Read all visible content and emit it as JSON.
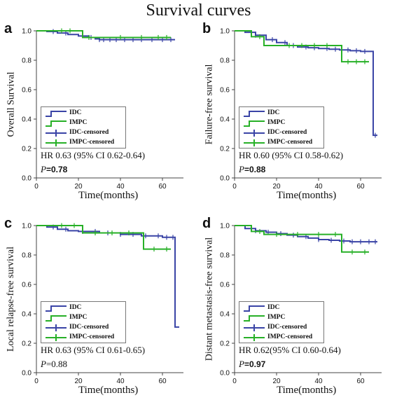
{
  "title": "Survival curves",
  "colors": {
    "IDC": "#3a44a6",
    "IMPC": "#27b027",
    "axis": "#444444"
  },
  "chart_data": [
    {
      "panel_label": "a",
      "type": "line",
      "title": "",
      "ylabel": "Overall Survival",
      "xlabel": "Time(months)",
      "xlim": [
        0,
        70
      ],
      "ylim": [
        0,
        1.0
      ],
      "xticks": [
        "0",
        "20",
        "40",
        "60"
      ],
      "yticks": [
        "0.0",
        "0.2",
        "0.4",
        "0.6",
        "0.8",
        "1.0"
      ],
      "legend": [
        "IDC",
        "IMPC",
        "IDC-censored",
        "IMPC-censored"
      ],
      "hr_text": "HR 0.63 (95% CI 0.62-0.64)",
      "p_label": "P",
      "p_value": "=0.78",
      "series": [
        {
          "name": "IDC",
          "x": [
            0,
            5,
            10,
            15,
            20,
            25,
            28,
            30,
            40,
            50,
            60,
            66
          ],
          "y": [
            1.0,
            0.995,
            0.985,
            0.975,
            0.965,
            0.955,
            0.945,
            0.94,
            0.94,
            0.94,
            0.94,
            0.94
          ],
          "censor_x": [
            8,
            14,
            26,
            30,
            32,
            35,
            38,
            42,
            46,
            50,
            55,
            60,
            64
          ]
        },
        {
          "name": "IMPC",
          "x": [
            0,
            22,
            22,
            64
          ],
          "y": [
            1.0,
            1.0,
            0.955,
            0.955
          ],
          "censor_x": [
            12,
            16,
            25,
            40,
            50,
            58,
            62
          ]
        }
      ]
    },
    {
      "panel_label": "b",
      "type": "line",
      "title": "",
      "ylabel": "Failure-free survival",
      "xlabel": "Time(months)",
      "xlim": [
        0,
        70
      ],
      "ylim": [
        0,
        1.0
      ],
      "xticks": [
        "0",
        "20",
        "40",
        "60"
      ],
      "yticks": [
        "0.0",
        "0.2",
        "0.4",
        "0.6",
        "0.8",
        "1.0"
      ],
      "legend": [
        "IDC",
        "IMPC",
        "IDC-censored",
        "IMPC-censored"
      ],
      "hr_text": "HR 0.60 (95% CI 0.58-0.62)",
      "p_label": "P",
      "p_value": "=0.88",
      "series": [
        {
          "name": "IDC",
          "x": [
            0,
            5,
            10,
            15,
            20,
            25,
            30,
            35,
            40,
            45,
            50,
            55,
            60,
            66,
            66,
            68
          ],
          "y": [
            1.0,
            0.99,
            0.97,
            0.94,
            0.92,
            0.9,
            0.89,
            0.885,
            0.88,
            0.875,
            0.87,
            0.865,
            0.86,
            0.86,
            0.29,
            0.29
          ],
          "censor_x": [
            10,
            18,
            24,
            28,
            34,
            38,
            44,
            48,
            54,
            58,
            62,
            67
          ]
        },
        {
          "name": "IMPC",
          "x": [
            0,
            8,
            8,
            14,
            14,
            22,
            22,
            51,
            51,
            64
          ],
          "y": [
            1.0,
            1.0,
            0.96,
            0.96,
            0.9,
            0.9,
            0.9,
            0.9,
            0.79,
            0.79
          ],
          "censor_x": [
            12,
            26,
            32,
            38,
            44,
            54,
            58,
            62
          ]
        }
      ]
    },
    {
      "panel_label": "c",
      "type": "line",
      "title": "",
      "ylabel": "Local relapse-free survival",
      "xlabel": "Time(months)",
      "xlim": [
        0,
        70
      ],
      "ylim": [
        0,
        1.0
      ],
      "xticks": [
        "0",
        "20",
        "40",
        "60"
      ],
      "yticks": [
        "0.0",
        "0.2",
        "0.4",
        "0.6",
        "0.8",
        "1.0"
      ],
      "legend": [
        "IDC",
        "IMPC",
        "IDC-censored",
        "IMPC-censored"
      ],
      "hr_text": "HR 0.63 (95% CI 0.61-0.65)",
      "p_label": "P",
      "p_value": "=0.88",
      "series": [
        {
          "name": "IDC",
          "x": [
            0,
            5,
            10,
            15,
            20,
            30,
            40,
            50,
            60,
            66,
            66,
            68
          ],
          "y": [
            1.0,
            0.99,
            0.975,
            0.965,
            0.96,
            0.95,
            0.94,
            0.93,
            0.92,
            0.92,
            0.31,
            0.31
          ],
          "censor_x": [
            8,
            14,
            22,
            28,
            34,
            40,
            46,
            52,
            58,
            62,
            65
          ]
        },
        {
          "name": "IMPC",
          "x": [
            0,
            22,
            22,
            51,
            51,
            64
          ],
          "y": [
            1.0,
            1.0,
            0.95,
            0.95,
            0.84,
            0.84
          ],
          "censor_x": [
            12,
            18,
            28,
            36,
            44,
            56,
            62
          ]
        }
      ]
    },
    {
      "panel_label": "d",
      "type": "line",
      "title": "",
      "ylabel": "Distant metastasis-free survival",
      "xlabel": "Time(months)",
      "xlim": [
        0,
        70
      ],
      "ylim": [
        0,
        1.0
      ],
      "xticks": [
        "0",
        "20",
        "40",
        "60"
      ],
      "yticks": [
        "0.0",
        "0.2",
        "0.4",
        "0.6",
        "0.8",
        "1.0"
      ],
      "legend": [
        "IDC",
        "IMPC",
        "IDC-censored",
        "IMPC-censored"
      ],
      "hr_text": "HR 0.62(95% CI 0.60-0.64)",
      "p_label": "P",
      "p_value": "=0.97",
      "series": [
        {
          "name": "IDC",
          "x": [
            0,
            5,
            10,
            15,
            20,
            25,
            30,
            35,
            40,
            45,
            50,
            55,
            60,
            68
          ],
          "y": [
            1.0,
            0.98,
            0.965,
            0.955,
            0.945,
            0.935,
            0.925,
            0.915,
            0.905,
            0.9,
            0.895,
            0.89,
            0.89,
            0.89
          ],
          "censor_x": [
            10,
            16,
            22,
            28,
            34,
            40,
            46,
            52,
            56,
            60,
            64,
            67
          ]
        },
        {
          "name": "IMPC",
          "x": [
            0,
            8,
            8,
            14,
            14,
            51,
            51,
            64
          ],
          "y": [
            1.0,
            1.0,
            0.96,
            0.96,
            0.94,
            0.94,
            0.82,
            0.82
          ],
          "censor_x": [
            12,
            20,
            30,
            40,
            48,
            56,
            62
          ]
        }
      ]
    }
  ]
}
